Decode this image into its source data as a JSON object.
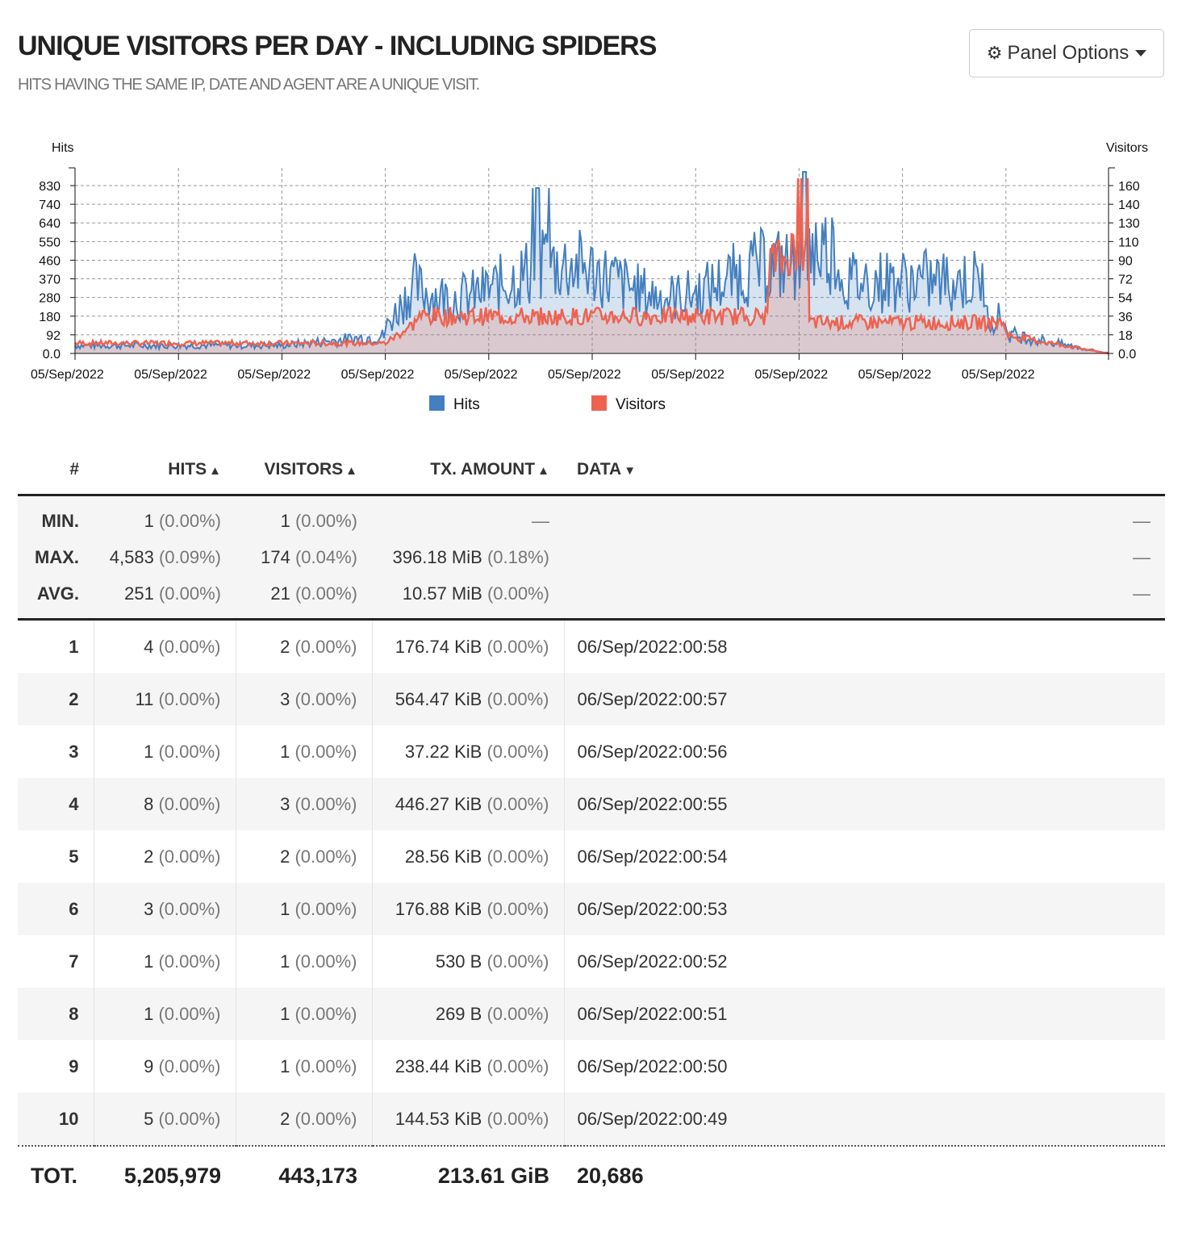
{
  "header": {
    "title": "UNIQUE VISITORS PER DAY - INCLUDING SPIDERS",
    "subtitle": "HITS HAVING THE SAME IP, DATE AND AGENT ARE A UNIQUE VISIT.",
    "panel_options_label": "Panel Options"
  },
  "chart_data": {
    "type": "area",
    "y_left_label": "Hits",
    "y_right_label": "Visitors",
    "y_left_ticks": [
      "830",
      "740",
      "640",
      "550",
      "460",
      "370",
      "280",
      "180",
      "92",
      "0.0"
    ],
    "y_right_ticks": [
      "160",
      "140",
      "130",
      "110",
      "90",
      "72",
      "54",
      "36",
      "18",
      "0.0"
    ],
    "y_left_range": [
      0,
      920
    ],
    "y_right_range": [
      0,
      180
    ],
    "x_tick_labels": [
      "05/Sep/2022",
      "05/Sep/2022",
      "05/Sep/2022",
      "05/Sep/2022",
      "05/Sep/2022",
      "05/Sep/2022",
      "05/Sep/2022",
      "05/Sep/2022",
      "05/Sep/2022",
      "05/Sep/2022"
    ],
    "grid": true,
    "legend_position": "bottom",
    "series": [
      {
        "name": "Hits",
        "color": "#447fbf"
      },
      {
        "name": "Visitors",
        "color": "#ee6350"
      }
    ]
  },
  "table": {
    "headers": {
      "idx": "#",
      "hits": "HITS",
      "visitors": "VISITORS",
      "tx": "TX. AMOUNT",
      "data": "DATA"
    },
    "summary": [
      {
        "label": "MIN.",
        "hits": "1",
        "hits_pct": "(0.00%)",
        "visitors": "1",
        "visitors_pct": "(0.00%)",
        "tx": "—",
        "tx_pct": "",
        "data": "—"
      },
      {
        "label": "MAX.",
        "hits": "4,583",
        "hits_pct": "(0.09%)",
        "visitors": "174",
        "visitors_pct": "(0.04%)",
        "tx": "396.18 MiB",
        "tx_pct": "(0.18%)",
        "data": "—"
      },
      {
        "label": "AVG.",
        "hits": "251",
        "hits_pct": "(0.00%)",
        "visitors": "21",
        "visitors_pct": "(0.00%)",
        "tx": "10.57 MiB",
        "tx_pct": "(0.00%)",
        "data": "—"
      }
    ],
    "rows": [
      {
        "idx": "1",
        "hits": "4",
        "hits_pct": "(0.00%)",
        "visitors": "2",
        "visitors_pct": "(0.00%)",
        "tx": "176.74 KiB",
        "tx_pct": "(0.00%)",
        "data": "06/Sep/2022:00:58"
      },
      {
        "idx": "2",
        "hits": "11",
        "hits_pct": "(0.00%)",
        "visitors": "3",
        "visitors_pct": "(0.00%)",
        "tx": "564.47 KiB",
        "tx_pct": "(0.00%)",
        "data": "06/Sep/2022:00:57"
      },
      {
        "idx": "3",
        "hits": "1",
        "hits_pct": "(0.00%)",
        "visitors": "1",
        "visitors_pct": "(0.00%)",
        "tx": "37.22 KiB",
        "tx_pct": "(0.00%)",
        "data": "06/Sep/2022:00:56"
      },
      {
        "idx": "4",
        "hits": "8",
        "hits_pct": "(0.00%)",
        "visitors": "3",
        "visitors_pct": "(0.00%)",
        "tx": "446.27 KiB",
        "tx_pct": "(0.00%)",
        "data": "06/Sep/2022:00:55"
      },
      {
        "idx": "5",
        "hits": "2",
        "hits_pct": "(0.00%)",
        "visitors": "2",
        "visitors_pct": "(0.00%)",
        "tx": "28.56 KiB",
        "tx_pct": "(0.00%)",
        "data": "06/Sep/2022:00:54"
      },
      {
        "idx": "6",
        "hits": "3",
        "hits_pct": "(0.00%)",
        "visitors": "1",
        "visitors_pct": "(0.00%)",
        "tx": "176.88 KiB",
        "tx_pct": "(0.00%)",
        "data": "06/Sep/2022:00:53"
      },
      {
        "idx": "7",
        "hits": "1",
        "hits_pct": "(0.00%)",
        "visitors": "1",
        "visitors_pct": "(0.00%)",
        "tx": "530 B",
        "tx_pct": "(0.00%)",
        "data": "06/Sep/2022:00:52"
      },
      {
        "idx": "8",
        "hits": "1",
        "hits_pct": "(0.00%)",
        "visitors": "1",
        "visitors_pct": "(0.00%)",
        "tx": "269 B",
        "tx_pct": "(0.00%)",
        "data": "06/Sep/2022:00:51"
      },
      {
        "idx": "9",
        "hits": "9",
        "hits_pct": "(0.00%)",
        "visitors": "1",
        "visitors_pct": "(0.00%)",
        "tx": "238.44 KiB",
        "tx_pct": "(0.00%)",
        "data": "06/Sep/2022:00:50"
      },
      {
        "idx": "10",
        "hits": "5",
        "hits_pct": "(0.00%)",
        "visitors": "2",
        "visitors_pct": "(0.00%)",
        "tx": "144.53 KiB",
        "tx_pct": "(0.00%)",
        "data": "06/Sep/2022:00:49"
      }
    ],
    "total": {
      "label": "TOT.",
      "hits": "5,205,979",
      "visitors": "443,173",
      "tx": "213.61 GiB",
      "data": "20,686"
    }
  }
}
